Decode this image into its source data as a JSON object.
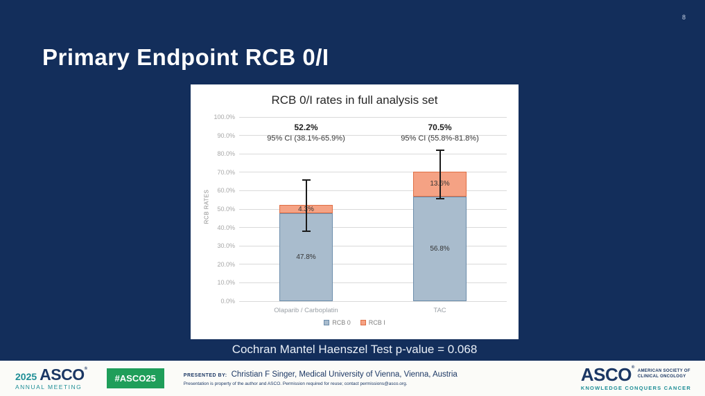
{
  "slide": {
    "page_number": "8",
    "title": "Primary Endpoint RCB 0/I",
    "stat_note": "Cochran Mantel Haenszel Test p-value = 0.068"
  },
  "chart_data": {
    "type": "bar",
    "stacked": true,
    "title": "RCB 0/I rates in full analysis set",
    "xlabel": "",
    "ylabel": "RCB RATES",
    "ylim": [
      0,
      100
    ],
    "ytick_step": 10,
    "ytick_labels": [
      "0.0%",
      "10.0%",
      "20.0%",
      "30.0%",
      "40.0%",
      "50.0%",
      "60.0%",
      "70.0%",
      "80.0%",
      "90.0%",
      "100.0%"
    ],
    "grid": true,
    "legend_position": "bottom",
    "categories": [
      "Olaparib / Carboplatin",
      "TAC"
    ],
    "series": [
      {
        "name": "RCB 0",
        "values": [
          47.8,
          56.8
        ],
        "color": "#a9bccd",
        "border": "#6b8cab"
      },
      {
        "name": "RCB I",
        "values": [
          4.3,
          13.6
        ],
        "color": "#f5a284",
        "border": "#df6e44"
      }
    ],
    "segment_labels": [
      [
        "47.8%",
        "4.3%"
      ],
      [
        "56.8%",
        "13.6%"
      ]
    ],
    "totals": [
      "52.2%",
      "70.5%"
    ],
    "ci_labels": [
      "95% CI (38.1%-65.9%)",
      "95% CI (55.8%-81.8%)"
    ],
    "error_bars": [
      {
        "low": 38.1,
        "high": 65.9
      },
      {
        "low": 55.8,
        "high": 81.8
      }
    ]
  },
  "footer": {
    "meeting_logo": {
      "year": "2025",
      "asco": "ASCO",
      "reg": "®",
      "sub": "ANNUAL MEETING"
    },
    "hashtag": "#ASCO25",
    "presented_by_label": "PRESENTED BY:",
    "presenter": "Christian F Singer, Medical University of Vienna, Vienna, Austria",
    "disclaimer": "Presentation is property of the author and ASCO. Permission required for reuse; contact permissions@asco.org.",
    "asco_logo": {
      "name": "ASCO",
      "reg": "®",
      "society_line1": "AMERICAN SOCIETY OF",
      "society_line2": "CLINICAL ONCOLOGY",
      "tagline": "KNOWLEDGE CONQUERS CANCER"
    }
  }
}
